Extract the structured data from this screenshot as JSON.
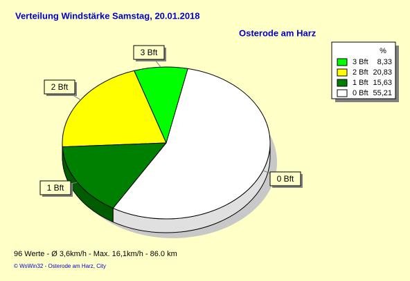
{
  "chart_data": {
    "type": "pie",
    "title": "Verteilung Windstärke  Samstag, 20.01.2018",
    "subtitle": "Osterode am Harz",
    "legend_header": "%",
    "categories": [
      "3 Bft",
      "2 Bft",
      "1 Bft",
      "0 Bft"
    ],
    "values": [
      8.33,
      20.83,
      15.63,
      55.21
    ],
    "value_labels": [
      "8,33",
      "20,83",
      "15,63",
      "55,21"
    ],
    "colors": [
      "#00ff00",
      "#ffff00",
      "#008000",
      "#ffffff"
    ],
    "footer": "96 Werte   -   Ø 3,6km/h  -  Max. 16,1km/h   -   86.0 km",
    "copyright": "© WsWin32  -  Osterode am Harz, City"
  }
}
